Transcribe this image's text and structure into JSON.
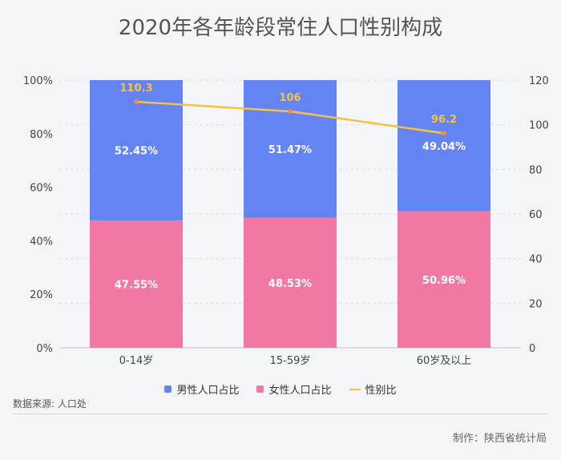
{
  "title": "2020年各年龄段常住人口性别构成",
  "source": "数据来源: 人口处",
  "maker": "制作：陕西省统计局",
  "colors": {
    "male": "#6384f2",
    "female": "#f078a3",
    "ratio": "#f5c242",
    "ratio_point": "#f2884e",
    "grid": "#d8dbe3",
    "axis": "#bfc3cc"
  },
  "chart_data": {
    "type": "bar",
    "stacked": true,
    "categories": [
      "0-14岁",
      "15-59岁",
      "60岁及以上"
    ],
    "series": [
      {
        "name": "男性人口占比",
        "axis": "left",
        "values": [
          52.45,
          51.47,
          49.04
        ],
        "labels": [
          "52.45%",
          "51.47%",
          "49.04%"
        ]
      },
      {
        "name": "女性人口占比",
        "axis": "left",
        "values": [
          47.55,
          48.53,
          50.96
        ],
        "labels": [
          "47.55%",
          "48.53%",
          "50.96%"
        ]
      },
      {
        "name": "性别比",
        "type": "line",
        "axis": "right",
        "values": [
          110.3,
          106,
          96.2
        ],
        "labels": [
          "110.3",
          "106",
          "96.2"
        ]
      }
    ],
    "left_axis": {
      "ticks": [
        "0%",
        "20%",
        "40%",
        "60%",
        "80%",
        "100%"
      ],
      "ylim": [
        0,
        100
      ]
    },
    "right_axis": {
      "ticks": [
        "0",
        "20",
        "40",
        "60",
        "80",
        "100",
        "120"
      ],
      "ylim": [
        0,
        120
      ]
    },
    "grid": true,
    "legend": "bottom"
  }
}
